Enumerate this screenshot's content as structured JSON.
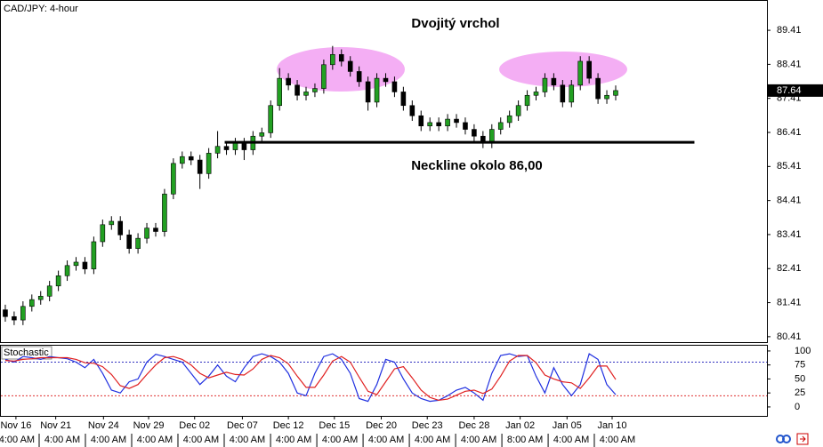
{
  "chart_data": [
    {
      "type": "candlestick",
      "title": "CAD/JPY: 4-hour",
      "annotations": [
        "Dvojitý vrchol",
        "Neckline okolo 86,00"
      ],
      "open": [
        81.2,
        81.0,
        80.9,
        81.3,
        81.5,
        81.6,
        81.9,
        82.2,
        82.5,
        82.6,
        82.4,
        83.2,
        83.7,
        83.8,
        83.4,
        83.0,
        83.3,
        83.6,
        83.5,
        84.6,
        85.5,
        85.7,
        85.6,
        85.2,
        85.8,
        86.0,
        85.9,
        86.1,
        85.9,
        86.3,
        86.4,
        87.2,
        88.0,
        87.8,
        87.5,
        87.6,
        87.7,
        88.4,
        88.7,
        88.5,
        88.2,
        87.9,
        87.3,
        88.0,
        87.9,
        87.6,
        87.2,
        86.9,
        86.6,
        86.7,
        86.6,
        86.8,
        86.7,
        86.5,
        86.3,
        86.1,
        86.5,
        86.7,
        86.9,
        87.2,
        87.5,
        87.6,
        88.0,
        87.8,
        87.3,
        87.8,
        88.5,
        88.0,
        87.4,
        87.5
      ],
      "high": [
        81.35,
        81.15,
        81.45,
        81.65,
        81.75,
        82.05,
        82.35,
        82.65,
        82.75,
        82.75,
        83.35,
        83.85,
        83.95,
        83.95,
        83.55,
        83.45,
        83.75,
        83.75,
        84.75,
        85.65,
        85.85,
        85.85,
        85.75,
        85.95,
        86.45,
        86.15,
        86.25,
        86.25,
        86.45,
        86.55,
        87.35,
        88.3,
        88.15,
        87.95,
        87.75,
        87.85,
        88.55,
        88.95,
        88.85,
        88.65,
        88.35,
        88.05,
        88.15,
        88.15,
        88.05,
        87.75,
        87.35,
        87.05,
        86.85,
        86.85,
        86.95,
        86.95,
        86.85,
        86.65,
        86.45,
        86.65,
        86.85,
        87.05,
        87.35,
        87.65,
        87.75,
        88.15,
        88.15,
        87.95,
        87.95,
        88.65,
        88.65,
        88.15,
        87.65,
        87.79
      ],
      "low": [
        80.85,
        80.75,
        80.75,
        81.15,
        81.35,
        81.45,
        81.75,
        82.05,
        82.35,
        82.25,
        82.25,
        83.05,
        83.55,
        83.25,
        82.85,
        82.85,
        83.15,
        83.35,
        83.35,
        84.45,
        85.35,
        85.45,
        84.75,
        85.05,
        85.65,
        85.75,
        85.75,
        85.6,
        85.75,
        86.15,
        86.25,
        87.05,
        87.65,
        87.35,
        87.35,
        87.45,
        87.55,
        88.25,
        88.35,
        88.05,
        87.75,
        87.05,
        87.15,
        87.75,
        87.45,
        87.05,
        86.75,
        86.45,
        86.45,
        86.45,
        86.45,
        86.55,
        86.35,
        86.15,
        85.95,
        85.95,
        86.35,
        86.55,
        86.75,
        87.05,
        87.35,
        87.45,
        87.65,
        87.15,
        87.15,
        87.65,
        87.85,
        87.25,
        87.25,
        87.35
      ],
      "close": [
        81.0,
        80.9,
        81.3,
        81.5,
        81.6,
        81.9,
        82.2,
        82.5,
        82.6,
        82.4,
        83.2,
        83.7,
        83.8,
        83.4,
        83.0,
        83.3,
        83.6,
        83.5,
        84.6,
        85.5,
        85.7,
        85.6,
        85.2,
        85.8,
        86.0,
        85.9,
        86.1,
        85.9,
        86.3,
        86.4,
        87.2,
        88.0,
        87.8,
        87.5,
        87.6,
        87.7,
        88.4,
        88.7,
        88.5,
        88.2,
        87.9,
        87.3,
        88.0,
        87.9,
        87.6,
        87.2,
        86.9,
        86.6,
        86.7,
        86.6,
        86.8,
        86.7,
        86.5,
        86.3,
        86.1,
        86.5,
        86.7,
        86.9,
        87.2,
        87.5,
        87.6,
        88.0,
        87.8,
        87.3,
        87.8,
        88.5,
        88.0,
        87.4,
        87.5,
        87.64
      ],
      "up_color": "#22a022",
      "down_color": "#000000",
      "neckline": {
        "value": 86.12,
        "from": 24.8,
        "to": 77.9
      },
      "xlim": [
        -0.6,
        86.1
      ],
      "ylim": [
        80.25,
        90.3
      ],
      "yticks": [
        80.41,
        81.41,
        82.41,
        83.41,
        84.41,
        85.41,
        86.41,
        87.41,
        88.41,
        89.41
      ],
      "xticks": [
        {
          "value": 1.2,
          "label": "Nov 16"
        },
        {
          "value": 5.7,
          "label": "Nov 21"
        },
        {
          "value": 11.1,
          "label": "Nov 24"
        },
        {
          "value": 16.2,
          "label": "Nov 29"
        },
        {
          "value": 21.4,
          "label": "Dec 02"
        },
        {
          "value": 26.8,
          "label": "Dec 07"
        },
        {
          "value": 32,
          "label": "Dec 12"
        },
        {
          "value": 37.2,
          "label": "Dec 15"
        },
        {
          "value": 42.5,
          "label": "Dec 20"
        },
        {
          "value": 47.7,
          "label": "Dec 23"
        },
        {
          "value": 53,
          "label": "Dec 28"
        },
        {
          "value": 58.2,
          "label": "Jan 02"
        },
        {
          "value": 63.5,
          "label": "Jan 05"
        },
        {
          "value": 68.6,
          "label": "Jan 10"
        }
      ],
      "xticks2": [
        {
          "value": 1.3,
          "label": "4:00 AM"
        },
        {
          "value": 6.44,
          "label": "4:00 AM"
        },
        {
          "value": 11.67,
          "label": "4:00 AM"
        },
        {
          "value": 16.9,
          "label": "4:00 AM"
        },
        {
          "value": 22.13,
          "label": "4:00 AM"
        },
        {
          "value": 27.36,
          "label": "4:00 AM"
        },
        {
          "value": 32.6,
          "label": "4:00 AM"
        },
        {
          "value": 37.83,
          "label": "4:00 AM"
        },
        {
          "value": 43.06,
          "label": "4:00 AM"
        },
        {
          "value": 48.29,
          "label": "4:00 AM"
        },
        {
          "value": 53.52,
          "label": "4:00 AM"
        },
        {
          "value": 58.75,
          "label": "8:00 AM"
        },
        {
          "value": 63.98,
          "label": "4:00 AM"
        },
        {
          "value": 69.2,
          "label": "4:00 AM"
        }
      ]
    },
    {
      "type": "line",
      "title": "Stochastic",
      "series": [
        {
          "color": "#2030e0",
          "values": [
            85,
            80,
            90,
            88,
            85,
            90,
            88,
            86,
            80,
            70,
            85,
            60,
            30,
            25,
            45,
            50,
            80,
            94,
            90,
            85,
            80,
            60,
            40,
            55,
            75,
            55,
            45,
            70,
            90,
            95,
            90,
            80,
            60,
            25,
            20,
            60,
            90,
            95,
            85,
            60,
            15,
            10,
            40,
            85,
            80,
            50,
            25,
            15,
            10,
            12,
            20,
            30,
            35,
            25,
            12,
            60,
            92,
            95,
            90,
            92,
            55,
            25,
            70,
            40,
            20,
            40,
            95,
            85,
            40,
            22
          ]
        },
        {
          "color": "#e02020",
          "values": [
            83,
            82,
            85,
            86,
            88,
            88,
            88,
            88,
            85,
            79,
            78,
            72,
            58,
            38,
            33,
            40,
            58,
            75,
            88,
            90,
            85,
            75,
            60,
            52,
            57,
            62,
            58,
            57,
            68,
            85,
            92,
            88,
            77,
            55,
            35,
            35,
            57,
            82,
            90,
            80,
            53,
            28,
            22,
            45,
            68,
            72,
            52,
            30,
            17,
            12,
            14,
            21,
            28,
            30,
            24,
            32,
            55,
            82,
            92,
            92,
            79,
            57,
            50,
            45,
            43,
            33,
            52,
            73,
            73,
            49
          ]
        }
      ],
      "levels": [
        {
          "value": 80,
          "color": "#3030c0"
        },
        {
          "value": 20,
          "color": "#e03030"
        }
      ],
      "xlim": [
        -0.6,
        86.1
      ],
      "ylim": [
        -16,
        111
      ],
      "yticks": [
        0,
        25,
        50,
        75,
        100
      ]
    }
  ]
}
